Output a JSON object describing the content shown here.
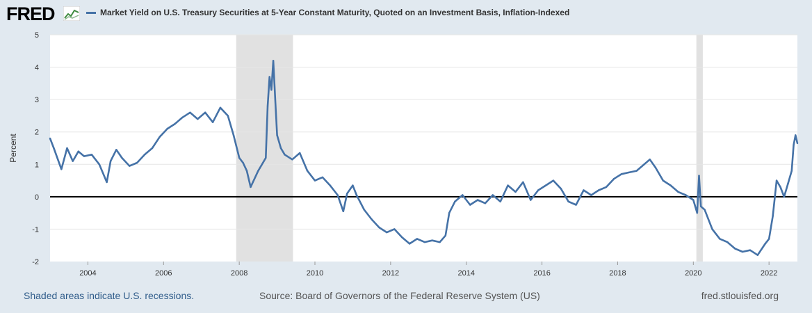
{
  "header": {
    "logo_text": "FRED",
    "title": "Market Yield on U.S. Treasury Securities at 5-Year Constant Maturity, Quoted on an Investment Basis, Inflation-Indexed"
  },
  "footer": {
    "recession_note": "Shaded areas indicate U.S. recessions.",
    "source": "Source: Board of Governors of the Federal Reserve System (US)",
    "site": "fred.stlouisfed.org"
  },
  "colors": {
    "line": "#4572a7",
    "recession": "#e1e1e1",
    "grid": "#e6e6e6",
    "zero_line": "#000000"
  },
  "chart_data": {
    "type": "line",
    "title": "Market Yield on U.S. Treasury Securities at 5-Year Constant Maturity, Quoted on an Investment Basis, Inflation-Indexed",
    "xlabel": "",
    "ylabel": "Percent",
    "xlim": [
      2003.0,
      2022.75
    ],
    "ylim": [
      -2,
      5
    ],
    "x_ticks": [
      2004,
      2006,
      2008,
      2010,
      2012,
      2014,
      2016,
      2018,
      2020,
      2022
    ],
    "y_ticks": [
      -2,
      -1,
      0,
      1,
      2,
      3,
      4,
      5
    ],
    "grid": true,
    "recessions": [
      [
        2007.92,
        2009.42
      ],
      [
        2020.08,
        2020.25
      ]
    ],
    "series": [
      {
        "name": "Market Yield on U.S. Treasury Securities at 5-Year Constant Maturity, Quoted on an Investment Basis, Inflation-Indexed",
        "x": [
          2003.0,
          2003.1,
          2003.3,
          2003.45,
          2003.6,
          2003.75,
          2003.9,
          2004.1,
          2004.3,
          2004.5,
          2004.6,
          2004.75,
          2004.9,
          2005.1,
          2005.3,
          2005.5,
          2005.7,
          2005.9,
          2006.1,
          2006.3,
          2006.5,
          2006.7,
          2006.9,
          2007.1,
          2007.3,
          2007.5,
          2007.7,
          2007.85,
          2008.0,
          2008.1,
          2008.2,
          2008.3,
          2008.5,
          2008.7,
          2008.75,
          2008.8,
          2008.85,
          2008.9,
          2008.95,
          2009.0,
          2009.1,
          2009.2,
          2009.4,
          2009.6,
          2009.8,
          2010.0,
          2010.2,
          2010.4,
          2010.6,
          2010.75,
          2010.85,
          2011.0,
          2011.1,
          2011.3,
          2011.5,
          2011.7,
          2011.9,
          2012.1,
          2012.3,
          2012.5,
          2012.7,
          2012.9,
          2013.1,
          2013.3,
          2013.45,
          2013.55,
          2013.7,
          2013.9,
          2014.1,
          2014.3,
          2014.5,
          2014.7,
          2014.9,
          2015.1,
          2015.3,
          2015.5,
          2015.7,
          2015.9,
          2016.1,
          2016.3,
          2016.5,
          2016.7,
          2016.9,
          2017.1,
          2017.3,
          2017.5,
          2017.7,
          2017.9,
          2018.1,
          2018.3,
          2018.5,
          2018.7,
          2018.85,
          2019.0,
          2019.2,
          2019.4,
          2019.6,
          2019.8,
          2020.0,
          2020.1,
          2020.15,
          2020.2,
          2020.3,
          2020.5,
          2020.7,
          2020.9,
          2021.1,
          2021.3,
          2021.5,
          2021.7,
          2021.9,
          2022.0,
          2022.1,
          2022.2,
          2022.3,
          2022.4,
          2022.5,
          2022.6,
          2022.65,
          2022.7,
          2022.75
        ],
        "values": [
          1.8,
          1.5,
          0.85,
          1.5,
          1.1,
          1.4,
          1.25,
          1.3,
          1.0,
          0.45,
          1.1,
          1.45,
          1.2,
          0.95,
          1.05,
          1.3,
          1.5,
          1.85,
          2.1,
          2.25,
          2.45,
          2.6,
          2.4,
          2.6,
          2.3,
          2.75,
          2.5,
          1.9,
          1.2,
          1.05,
          0.8,
          0.3,
          0.8,
          1.2,
          2.8,
          3.7,
          3.3,
          4.2,
          3.0,
          1.9,
          1.5,
          1.3,
          1.15,
          1.35,
          0.8,
          0.5,
          0.6,
          0.35,
          0.05,
          -0.45,
          0.1,
          0.35,
          0.05,
          -0.4,
          -0.7,
          -0.95,
          -1.1,
          -1.0,
          -1.25,
          -1.45,
          -1.3,
          -1.4,
          -1.35,
          -1.4,
          -1.2,
          -0.5,
          -0.15,
          0.05,
          -0.25,
          -0.1,
          -0.2,
          0.05,
          -0.15,
          0.35,
          0.15,
          0.45,
          -0.1,
          0.2,
          0.35,
          0.5,
          0.25,
          -0.15,
          -0.25,
          0.2,
          0.05,
          0.2,
          0.3,
          0.55,
          0.7,
          0.75,
          0.8,
          1.0,
          1.15,
          0.9,
          0.5,
          0.35,
          0.15,
          0.05,
          -0.1,
          -0.5,
          0.65,
          -0.3,
          -0.4,
          -1.0,
          -1.3,
          -1.4,
          -1.6,
          -1.7,
          -1.65,
          -1.8,
          -1.45,
          -1.3,
          -0.6,
          0.5,
          0.3,
          0.0,
          0.4,
          0.8,
          1.6,
          1.9,
          1.65
        ]
      }
    ]
  }
}
